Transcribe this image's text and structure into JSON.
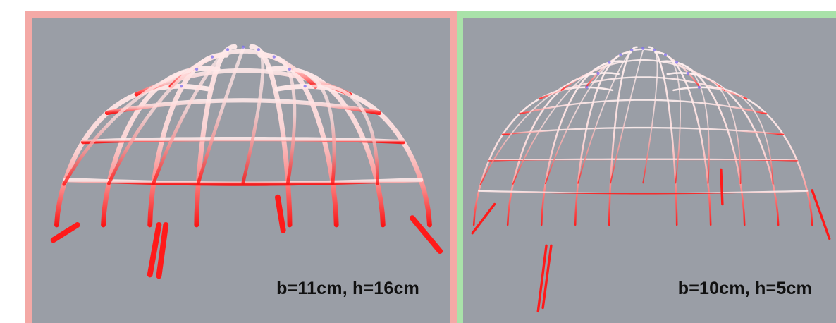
{
  "panels": [
    {
      "caption": "b=11cm, h=16cm",
      "frame_color": "#f4a9a6",
      "style": "thick"
    },
    {
      "caption": "b=10cm, h=5cm",
      "frame_color": "#a9e2a9",
      "style": "thin"
    }
  ],
  "colors": {
    "viewport_background": "#9a9ea6",
    "stress_low": "#ffe6e6",
    "stress_high": "#ff1a1a",
    "joint_marker": "#7a6cf0"
  }
}
